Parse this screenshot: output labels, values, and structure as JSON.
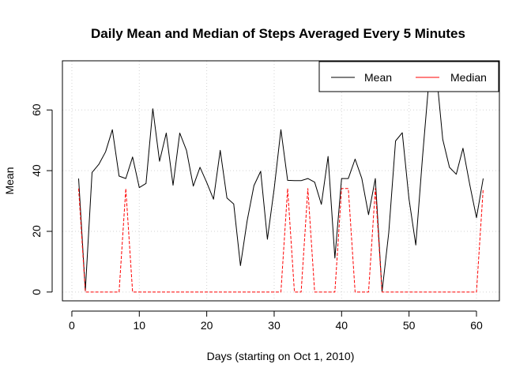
{
  "chart_data": {
    "type": "line",
    "title": "Daily Mean and Median of Steps Averaged Every 5 Minutes",
    "xlabel": "Days  (starting on Oct 1, 2010)",
    "ylabel": "Mean",
    "xlim": [
      -1.4,
      63.4
    ],
    "ylim": [
      -2.9,
      76.2
    ],
    "x_ticks": [
      0,
      10,
      20,
      30,
      40,
      50,
      60
    ],
    "y_ticks": [
      0,
      20,
      40,
      60
    ],
    "grid": true,
    "legend_position": "top-right",
    "x": [
      1,
      2,
      3,
      4,
      5,
      6,
      7,
      8,
      9,
      10,
      11,
      12,
      13,
      14,
      15,
      16,
      17,
      18,
      19,
      20,
      21,
      22,
      23,
      24,
      25,
      26,
      27,
      28,
      29,
      30,
      31,
      32,
      33,
      34,
      35,
      36,
      37,
      38,
      39,
      40,
      41,
      42,
      43,
      44,
      45,
      46,
      47,
      48,
      49,
      50,
      51,
      52,
      53,
      54,
      55,
      56,
      57,
      58,
      59,
      60,
      61
    ],
    "series": [
      {
        "name": "Mean",
        "color": "#000000",
        "values": [
          37.4,
          0.4,
          39.4,
          42.1,
          46.2,
          53.5,
          38.2,
          37.4,
          44.5,
          34.4,
          35.8,
          60.4,
          43.1,
          52.4,
          35.2,
          52.4,
          46.7,
          34.9,
          41.1,
          36.1,
          30.6,
          46.7,
          31.0,
          29.0,
          8.7,
          23.5,
          35.1,
          39.8,
          17.4,
          34.1,
          53.5,
          36.8,
          36.7,
          36.7,
          37.4,
          36.2,
          28.9,
          44.7,
          11.2,
          37.4,
          37.4,
          43.8,
          37.4,
          25.5,
          37.4,
          0.1,
          19.6,
          49.8,
          52.5,
          30.7,
          15.5,
          44.4,
          70.9,
          73.6,
          50.3,
          41.1,
          38.8,
          47.4,
          35.4,
          24.5,
          37.4
        ]
      },
      {
        "name": "Median",
        "color": "#ff0000",
        "values": [
          34.1,
          0,
          0,
          0,
          0,
          0,
          0,
          34.1,
          0,
          0,
          0,
          0,
          0,
          0,
          0,
          0,
          0,
          0,
          0,
          0,
          0,
          0,
          0,
          0,
          0,
          0,
          0,
          0,
          0,
          0,
          0,
          34.1,
          0,
          0,
          34.1,
          0,
          0,
          0,
          0,
          34.1,
          34.1,
          0,
          0,
          0,
          34.1,
          0,
          0,
          0,
          0,
          0,
          0,
          0,
          0,
          0,
          0,
          0,
          0,
          0,
          0,
          0,
          34.1
        ]
      }
    ]
  }
}
